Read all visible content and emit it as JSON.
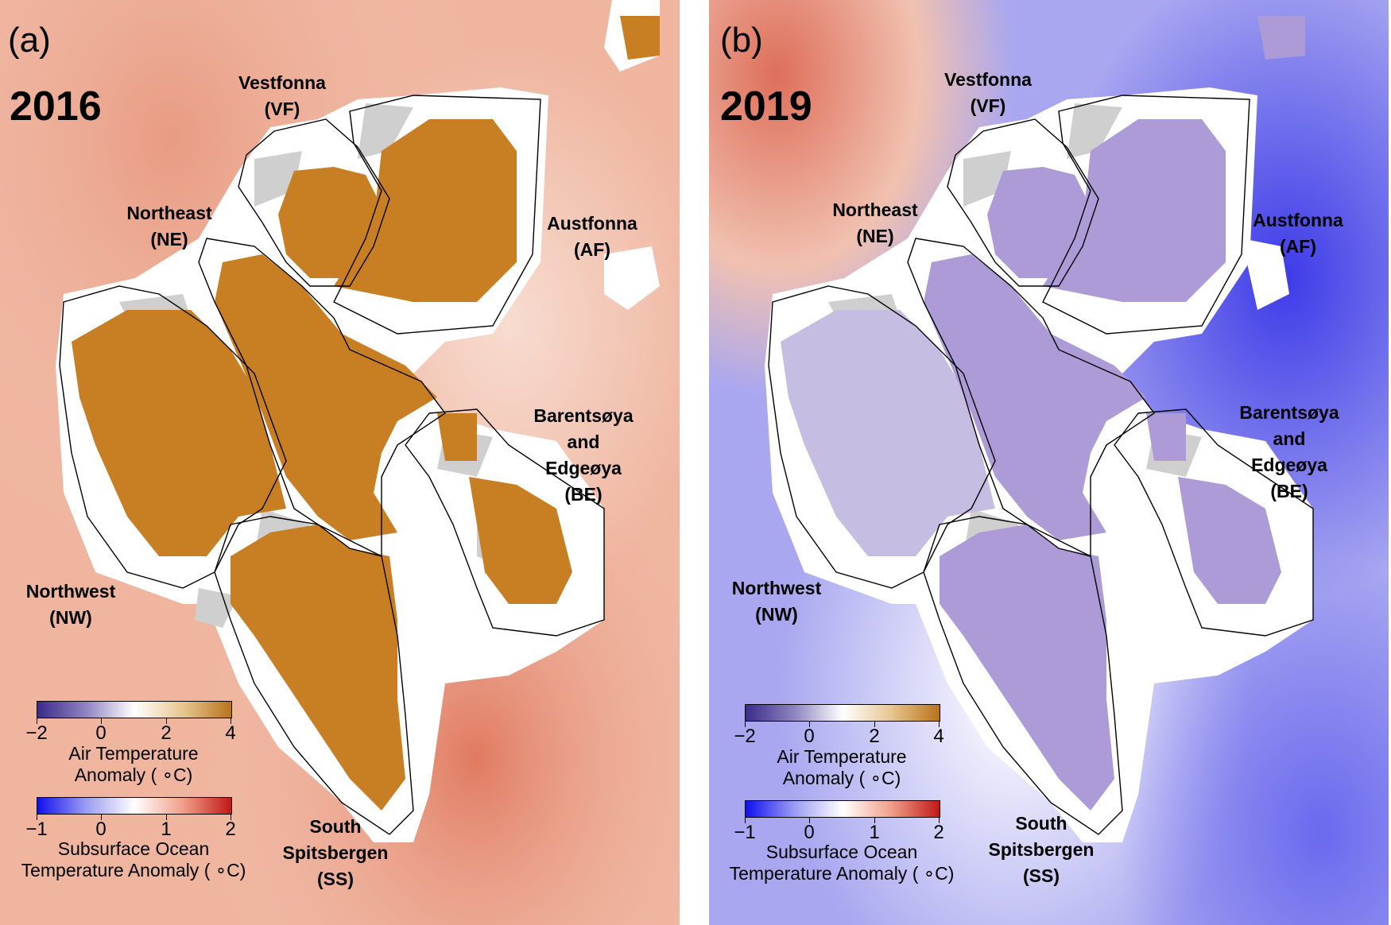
{
  "panels": [
    {
      "tag": "(a)",
      "year": "2016",
      "colors": {
        "sea": "#f0b7a1",
        "sea_dark": "#e58c72",
        "sea_light": "#f7d8cb",
        "land": "#c87f24",
        "ice": "#ffffff",
        "shade": "#cfcfcf"
      }
    },
    {
      "tag": "(b)",
      "year": "2019",
      "colors": {
        "sea": "#a9a8f2",
        "sea_dark": "#4d4bea",
        "sea_light": "#dcdcf8",
        "land": "#a897d4",
        "ice": "#ffffff",
        "shade": "#cfcfcf",
        "hot": "#e0806a"
      }
    }
  ],
  "regions": {
    "vestfonna": [
      "Vestfonna",
      "(VF)"
    ],
    "northeast": [
      "Northeast",
      "(NE)"
    ],
    "austfonna": [
      "Austfonna",
      "(AF)"
    ],
    "barents": [
      "Barentsøya",
      "and Edgeøya",
      "(BE)"
    ],
    "northwest": [
      "Northwest",
      "(NW)"
    ],
    "south": [
      "South",
      "Spitsbergen",
      "(SS)"
    ]
  },
  "air_colorbar": {
    "ticks": [
      "−2",
      "0",
      "2",
      "4"
    ],
    "label_1": "Air Temperature",
    "label_2": "Anomaly ( ∘C)",
    "colors": [
      "#3b2b8a",
      "#8d84c0",
      "#ffffff",
      "#e7c690",
      "#b8731c"
    ]
  },
  "ocean_colorbar": {
    "ticks": [
      "−1",
      "0",
      "1",
      "2"
    ],
    "label_1": "Subsurface Ocean",
    "label_2": "Temperature Anomaly ( ∘C)",
    "colors": [
      "#1010ee",
      "#9b9bf2",
      "#ffffff",
      "#f0a08a",
      "#c01818"
    ]
  }
}
